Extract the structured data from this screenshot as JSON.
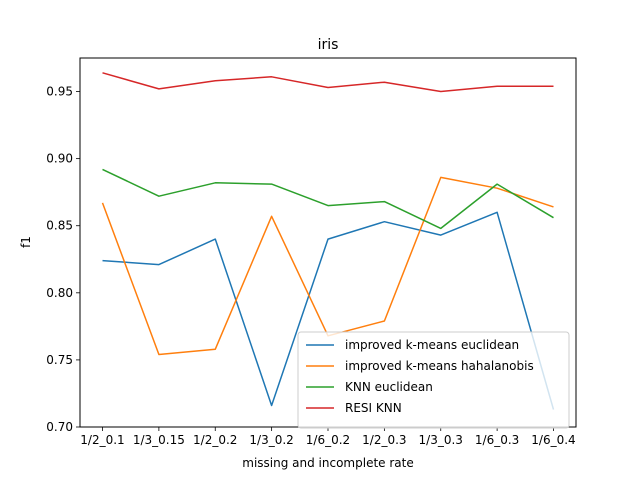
{
  "chart_data": {
    "type": "line",
    "title": "iris",
    "xlabel": "missing and incomplete rate",
    "ylabel": "f1",
    "categories": [
      "1/2_0.1",
      "1/3_0.15",
      "1/2_0.2",
      "1/3_0.2",
      "1/6_0.2",
      "1/2_0.3",
      "1/3_0.3",
      "1/6_0.3",
      "1/6_0.4"
    ],
    "ylim": [
      0.7,
      0.975
    ],
    "yticks": [
      "0.70",
      "0.75",
      "0.80",
      "0.85",
      "0.90",
      "0.95"
    ],
    "grid": false,
    "legend_position": "lower-right",
    "series": [
      {
        "name": "improved k-means euclidean",
        "color": "#1f77b4",
        "values": [
          0.824,
          0.821,
          0.84,
          0.716,
          0.84,
          0.853,
          0.843,
          0.86,
          0.713
        ]
      },
      {
        "name": "improved k-means hahalanobis",
        "color": "#ff7f0e",
        "values": [
          0.867,
          0.754,
          0.758,
          0.857,
          0.768,
          0.779,
          0.886,
          0.878,
          0.864
        ]
      },
      {
        "name": "KNN euclidean",
        "color": "#2ca02c",
        "values": [
          0.892,
          0.872,
          0.882,
          0.881,
          0.865,
          0.868,
          0.848,
          0.881,
          0.856
        ]
      },
      {
        "name": "RESI KNN",
        "color": "#d62728",
        "values": [
          0.964,
          0.952,
          0.958,
          0.961,
          0.953,
          0.957,
          0.95,
          0.954,
          0.954
        ]
      }
    ]
  }
}
